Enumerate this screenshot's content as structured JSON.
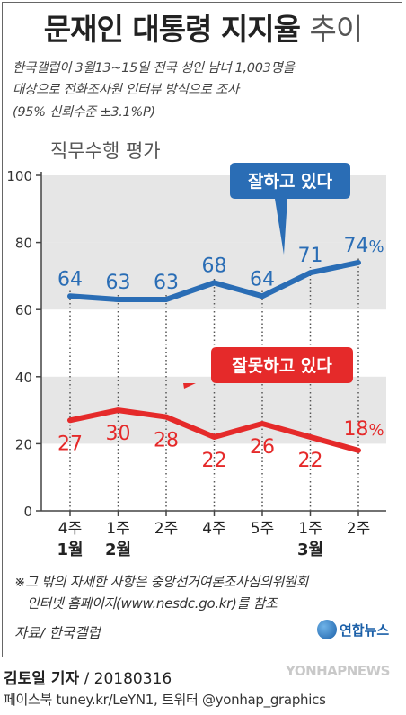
{
  "title": {
    "main": "문재인 대통령 지지율",
    "sub": "추이"
  },
  "description": [
    "한국갤럽이 3월13~15일 전국 성인 남녀 1,003명을",
    "대상으로 전화조사원 인터뷰 방식으로 조사",
    "(95% 신뢰수준 ±3.1%P)"
  ],
  "chart_data": {
    "type": "line",
    "title": "직무수행 평가",
    "x": [
      "4주",
      "1주",
      "2주",
      "4주",
      "5주",
      "1주",
      "2주"
    ],
    "months": [
      {
        "label": "1월",
        "index": 0
      },
      {
        "label": "2월",
        "index": 1
      },
      {
        "label": "3월",
        "index": 5
      }
    ],
    "ylim": [
      0,
      100
    ],
    "yticks": [
      0,
      20,
      40,
      60,
      80,
      100
    ],
    "grid": "alternating bands",
    "series": [
      {
        "name": "잘하고 있다",
        "values": [
          64,
          63,
          63,
          68,
          64,
          71,
          74
        ],
        "labels": [
          "64",
          "63",
          "63",
          "68",
          "64",
          "71",
          "74"
        ],
        "color": "#2a6db5",
        "last_suffix": "%"
      },
      {
        "name": "잘못하고 있다",
        "values": [
          27,
          30,
          28,
          22,
          26,
          22,
          18
        ],
        "labels": [
          "27",
          "30",
          "28",
          "22",
          "26",
          "22",
          "18"
        ],
        "color": "#e52a2a",
        "last_suffix": "%"
      }
    ]
  },
  "notes": [
    "※그 밖의 자세한 사항은 중앙선거여론조사심의위원회",
    "인터넷 홈페이지(www.nesdc.go.kr)를 참조"
  ],
  "source": "자료/ 한국갤럽",
  "logo": "연합뉴스",
  "reporter": {
    "name": "김토일 기자",
    "date": "20180316"
  },
  "sns": "페이스북 tuney.kr/LeYN1, 트위터 @yonhap_graphics",
  "watermark": "YONHAPNEWS"
}
